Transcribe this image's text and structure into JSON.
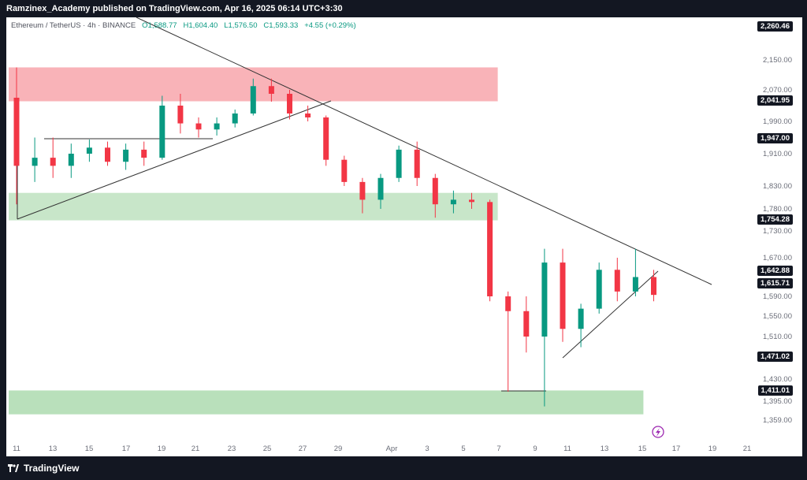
{
  "header": {
    "published_text": "Ramzinex_Academy published on TradingView.com, Apr 16, 2025 06:14 UTC+3:30"
  },
  "symbol": {
    "name": "Ethereum / TetherUS · 4h · BINANCE",
    "open_label": "O",
    "open": "1,588.77",
    "high_label": "H",
    "high": "1,604.40",
    "low_label": "L",
    "low": "1,576.50",
    "close_label": "C",
    "close": "1,593.33",
    "change": "+4.55 (+0.29%)"
  },
  "footer": {
    "logo_text": "TradingView"
  },
  "chart_data": {
    "type": "candlestick",
    "x_ticks": [
      "11",
      "13",
      "15",
      "17",
      "19",
      "21",
      "23",
      "25",
      "27",
      "29",
      "Apr",
      "3",
      "5",
      "7",
      "9",
      "11",
      "13",
      "15",
      "17",
      "19",
      "21"
    ],
    "y_ticks": [
      "2,150.00",
      "2,070.00",
      "1,990.00",
      "1,910.00",
      "1,830.00",
      "1,780.00",
      "1,730.00",
      "1,670.00",
      "1,590.00",
      "1,550.00",
      "1,510.00",
      "1,430.00",
      "1,395.00",
      "1,359.00"
    ],
    "y_tick_values": [
      2150,
      2070,
      1990,
      1910,
      1830,
      1780,
      1730,
      1670,
      1590,
      1550,
      1510,
      1430,
      1395,
      1359
    ],
    "price_labels": [
      "2,260.46",
      "2,041.95",
      "1,947.00",
      "1,754.28",
      "1,642.88",
      "1,615.71",
      "1,471.02",
      "1,411.01"
    ],
    "price_label_values": [
      2260.46,
      2041.95,
      1947.0,
      1754.28,
      1642.88,
      1615.71,
      1471.02,
      1411.01
    ],
    "zones": [
      {
        "type": "resistance",
        "color": "#f9b3b8",
        "from_date": "Mar 11",
        "to_date": "Apr 6",
        "low": 2041,
        "high": 2130
      },
      {
        "type": "support",
        "color": "#c8e6c9",
        "from_date": "Mar 11",
        "to_date": "Apr 6",
        "low": 1754,
        "high": 1815
      },
      {
        "type": "support",
        "color": "#b9e0bb",
        "from_date": "Mar 11",
        "to_date": "Apr 14",
        "low": 1370,
        "high": 1412
      }
    ],
    "up_color": "#089981",
    "down_color": "#f23645",
    "candles": [
      {
        "date": "Mar 11",
        "open": 2050,
        "high": 2130,
        "low": 1790,
        "close": 1880
      },
      {
        "date": "Mar 12",
        "open": 1880,
        "high": 1950,
        "low": 1840,
        "close": 1900
      },
      {
        "date": "Mar 13",
        "open": 1900,
        "high": 1950,
        "low": 1850,
        "close": 1880
      },
      {
        "date": "Mar 14",
        "open": 1880,
        "high": 1935,
        "low": 1850,
        "close": 1910
      },
      {
        "date": "Mar 15",
        "open": 1910,
        "high": 1945,
        "low": 1890,
        "close": 1925
      },
      {
        "date": "Mar 16",
        "open": 1925,
        "high": 1940,
        "low": 1880,
        "close": 1890
      },
      {
        "date": "Mar 17",
        "open": 1890,
        "high": 1935,
        "low": 1870,
        "close": 1920
      },
      {
        "date": "Mar 18",
        "open": 1920,
        "high": 1940,
        "low": 1880,
        "close": 1900
      },
      {
        "date": "Mar 19",
        "open": 1900,
        "high": 2055,
        "low": 1895,
        "close": 2030
      },
      {
        "date": "Mar 20",
        "open": 2030,
        "high": 2060,
        "low": 1960,
        "close": 1985
      },
      {
        "date": "Mar 21",
        "open": 1985,
        "high": 2000,
        "low": 1950,
        "close": 1970
      },
      {
        "date": "Mar 22",
        "open": 1970,
        "high": 2000,
        "low": 1955,
        "close": 1985
      },
      {
        "date": "Mar 23",
        "open": 1985,
        "high": 2020,
        "low": 1975,
        "close": 2010
      },
      {
        "date": "Mar 24",
        "open": 2010,
        "high": 2100,
        "low": 2005,
        "close": 2080
      },
      {
        "date": "Mar 25",
        "open": 2080,
        "high": 2100,
        "low": 2040,
        "close": 2060
      },
      {
        "date": "Mar 26",
        "open": 2060,
        "high": 2070,
        "low": 1995,
        "close": 2010
      },
      {
        "date": "Mar 27",
        "open": 2010,
        "high": 2030,
        "low": 1990,
        "close": 2000
      },
      {
        "date": "Mar 28",
        "open": 2000,
        "high": 2005,
        "low": 1880,
        "close": 1895
      },
      {
        "date": "Mar 29",
        "open": 1895,
        "high": 1905,
        "low": 1830,
        "close": 1840
      },
      {
        "date": "Mar 30",
        "open": 1840,
        "high": 1850,
        "low": 1770,
        "close": 1800
      },
      {
        "date": "Mar 31",
        "open": 1800,
        "high": 1860,
        "low": 1780,
        "close": 1850
      },
      {
        "date": "Apr 1",
        "open": 1850,
        "high": 1930,
        "low": 1840,
        "close": 1920
      },
      {
        "date": "Apr 2",
        "open": 1920,
        "high": 1940,
        "low": 1830,
        "close": 1850
      },
      {
        "date": "Apr 3",
        "open": 1850,
        "high": 1860,
        "low": 1760,
        "close": 1790
      },
      {
        "date": "Apr 4",
        "open": 1790,
        "high": 1820,
        "low": 1770,
        "close": 1800
      },
      {
        "date": "Apr 5",
        "open": 1800,
        "high": 1815,
        "low": 1780,
        "close": 1795
      },
      {
        "date": "Apr 6",
        "open": 1795,
        "high": 1800,
        "low": 1580,
        "close": 1590
      },
      {
        "date": "Apr 7",
        "open": 1590,
        "high": 1600,
        "low": 1410,
        "close": 1560
      },
      {
        "date": "Apr 8",
        "open": 1560,
        "high": 1590,
        "low": 1480,
        "close": 1510
      },
      {
        "date": "Apr 9",
        "open": 1510,
        "high": 1690,
        "low": 1385,
        "close": 1660
      },
      {
        "date": "Apr 10",
        "open": 1660,
        "high": 1690,
        "low": 1500,
        "close": 1525
      },
      {
        "date": "Apr 11",
        "open": 1525,
        "high": 1575,
        "low": 1490,
        "close": 1565
      },
      {
        "date": "Apr 12",
        "open": 1565,
        "high": 1660,
        "low": 1555,
        "close": 1645
      },
      {
        "date": "Apr 13",
        "open": 1645,
        "high": 1670,
        "low": 1580,
        "close": 1600
      },
      {
        "date": "Apr 14",
        "open": 1600,
        "high": 1690,
        "low": 1590,
        "close": 1630
      },
      {
        "date": "Apr 15",
        "open": 1630,
        "high": 1645,
        "low": 1580,
        "close": 1593
      }
    ]
  }
}
